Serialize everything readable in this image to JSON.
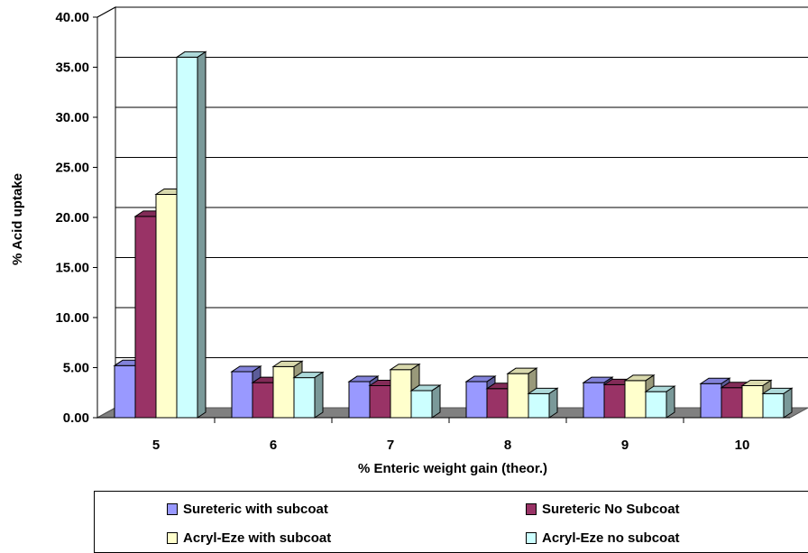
{
  "chart_data": {
    "type": "bar",
    "xlabel": "% Enteric weight gain (theor.)",
    "ylabel": "% Acid uptake",
    "categories": [
      "5",
      "6",
      "7",
      "8",
      "9",
      "10"
    ],
    "ylim": [
      0,
      40
    ],
    "yticks": [
      "0.00",
      "5.00",
      "10.00",
      "15.00",
      "20.00",
      "25.00",
      "30.00",
      "35.00",
      "40.00"
    ],
    "grid": true,
    "legend_position": "bottom",
    "series": [
      {
        "name": "Sureteric with subcoat",
        "color": "#9999ff",
        "values": [
          5.2,
          4.6,
          3.6,
          3.6,
          3.5,
          3.4
        ]
      },
      {
        "name": "Sureteric No Subcoat",
        "color": "#993366",
        "values": [
          20.1,
          3.5,
          3.2,
          2.9,
          3.3,
          3.0
        ]
      },
      {
        "name": "Acryl-Eze with subcoat",
        "color": "#ffffcc",
        "values": [
          22.3,
          5.1,
          4.8,
          4.4,
          3.7,
          3.2
        ]
      },
      {
        "name": "Acryl-Eze no subcoat",
        "color": "#ccffff",
        "values": [
          36.0,
          4.0,
          2.7,
          2.4,
          2.6,
          2.4
        ]
      }
    ]
  }
}
